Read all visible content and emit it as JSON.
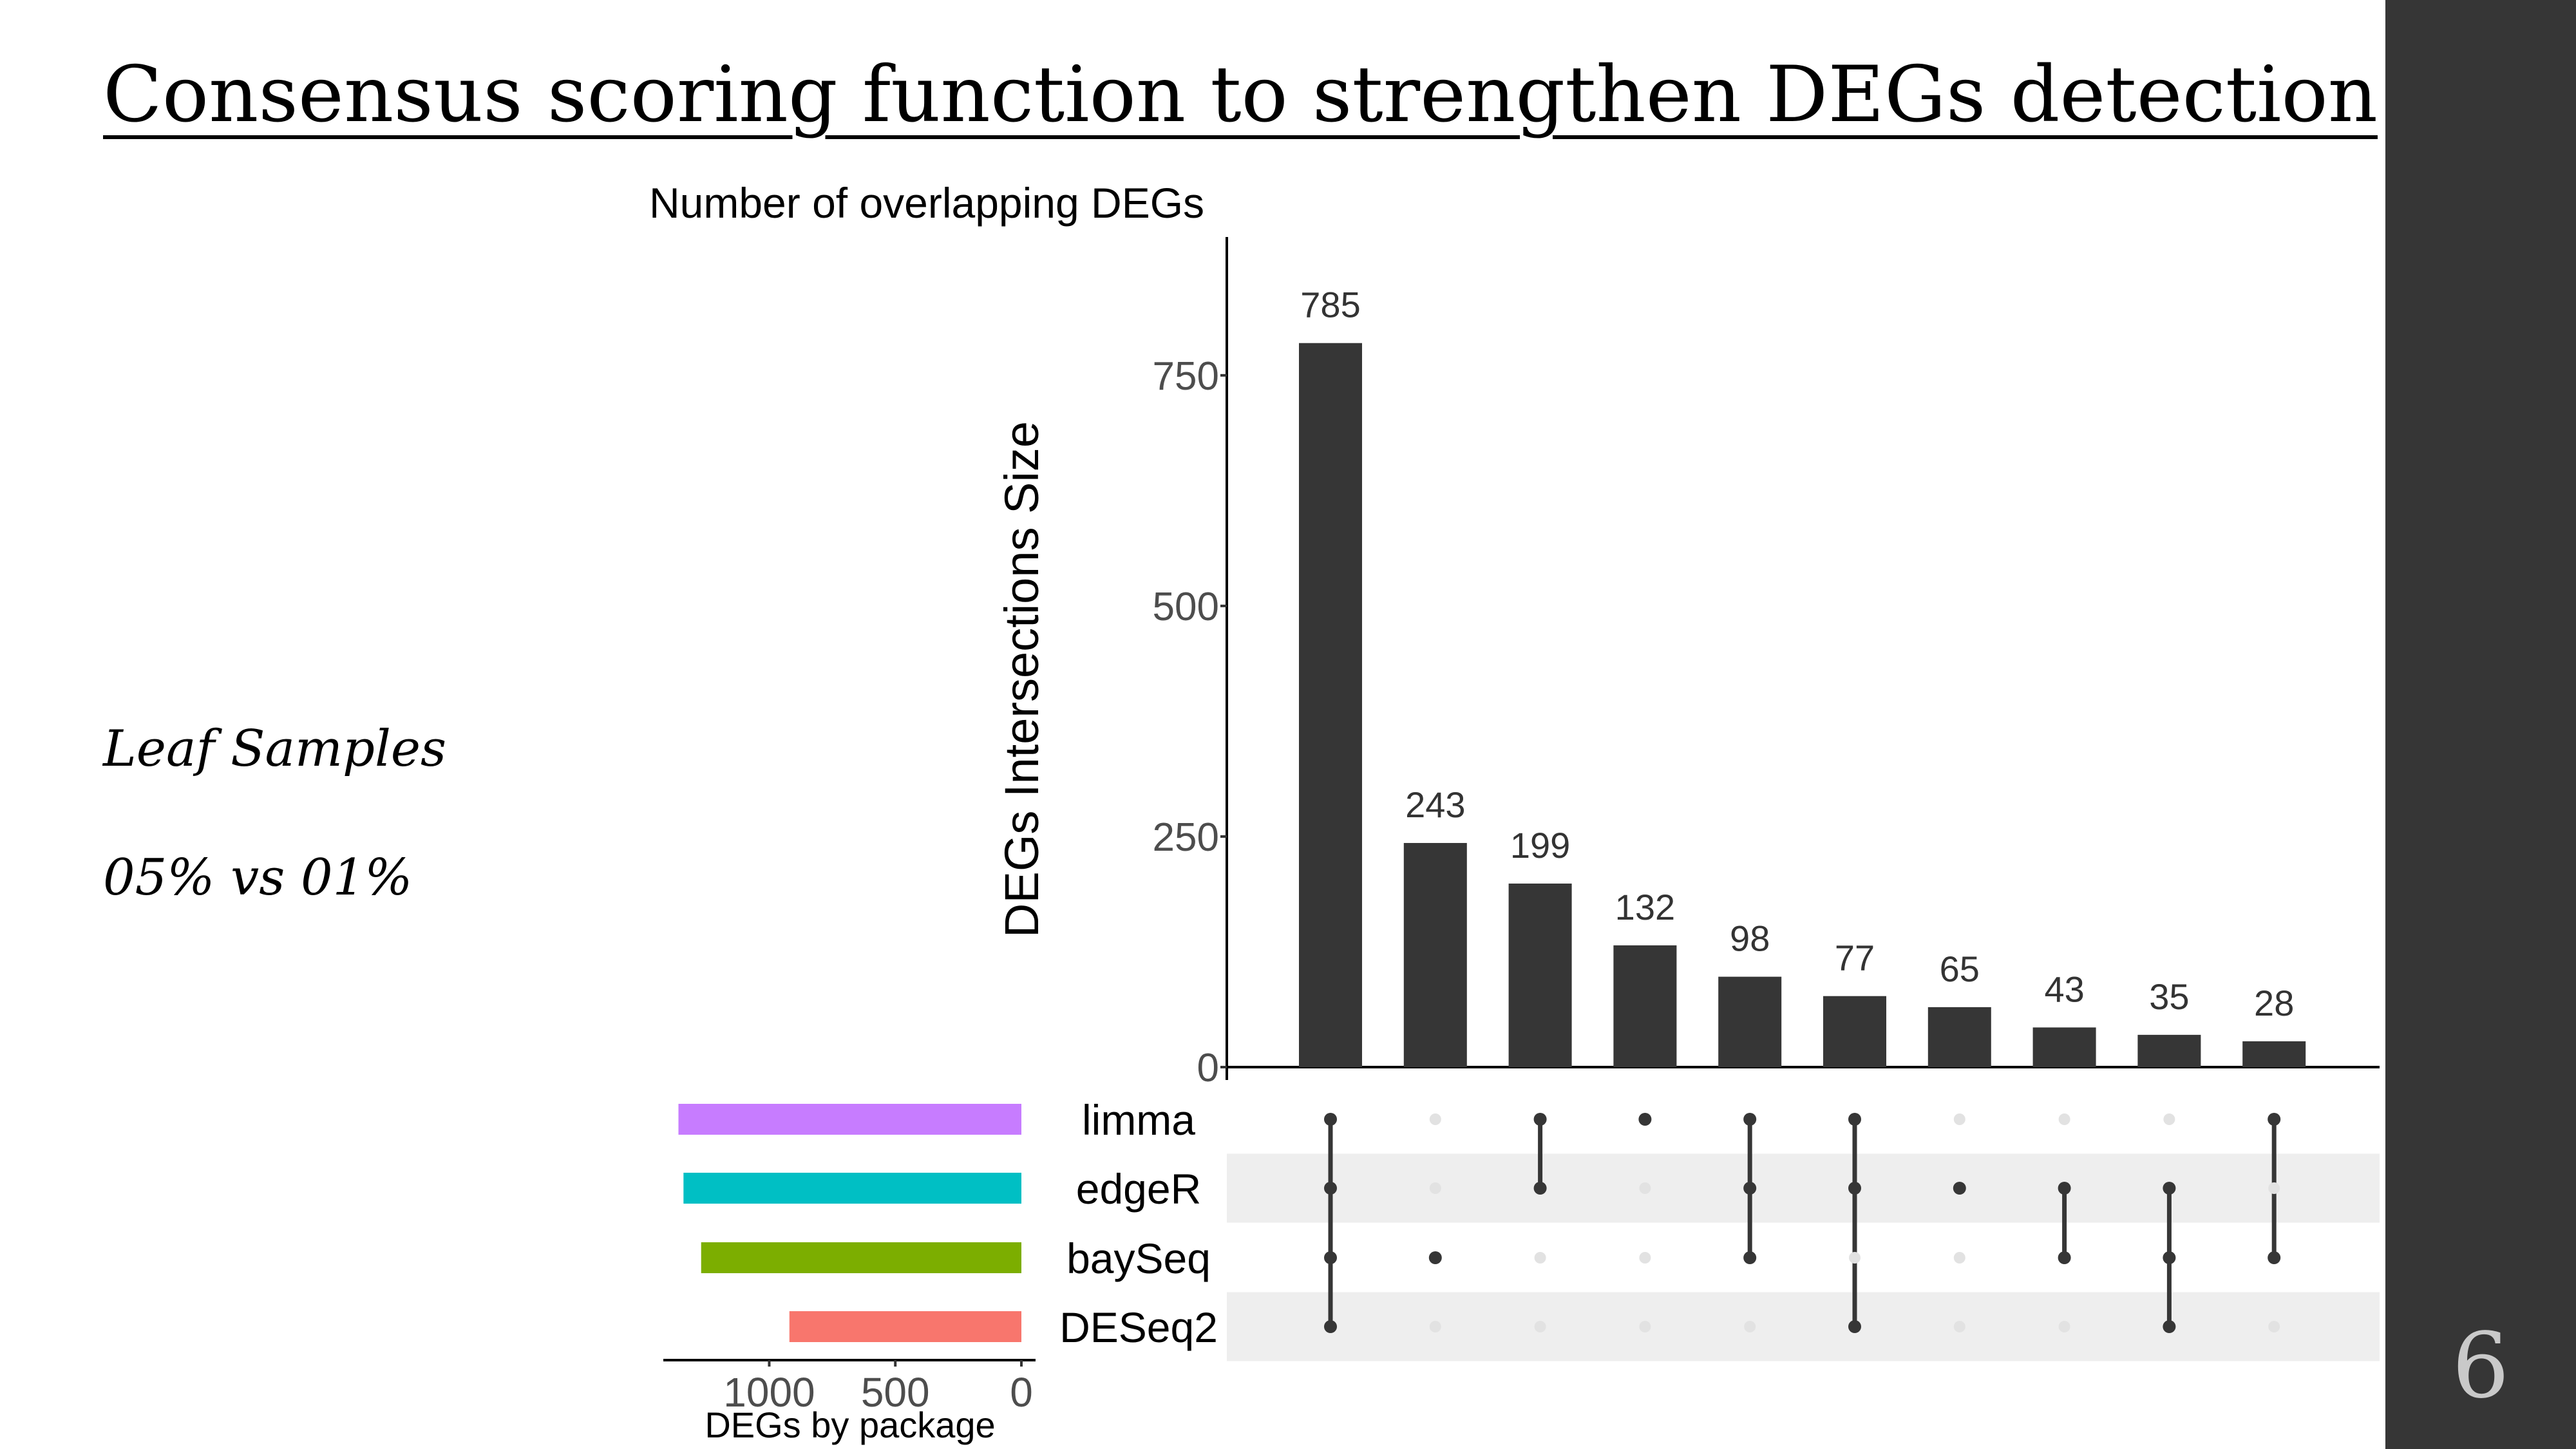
{
  "slide": {
    "title": "Consensus scoring function to strengthen DEGs detection",
    "side_line1": "Leaf Samples",
    "side_line2": "05% vs 01%",
    "page_number": "6",
    "colors": {
      "sidebar": "#363636",
      "bars": "#363636",
      "stripe": "#eeeeee"
    }
  },
  "chart_data": {
    "type": "bar",
    "title": "Number of overlapping DEGs",
    "ylabel": "DEGs Intersections Size",
    "ylim": [
      0,
      900
    ],
    "yticks": [
      0,
      250,
      500,
      750
    ],
    "intersections": [
      {
        "value": 785,
        "label": "785",
        "members": [
          "limma",
          "edgeR",
          "baySeq",
          "DESeq2"
        ]
      },
      {
        "value": 243,
        "label": "243",
        "members": [
          "baySeq"
        ]
      },
      {
        "value": 199,
        "label": "199",
        "members": [
          "limma",
          "edgeR"
        ]
      },
      {
        "value": 132,
        "label": "132",
        "members": [
          "limma"
        ]
      },
      {
        "value": 98,
        "label": "98",
        "members": [
          "limma",
          "edgeR",
          "baySeq"
        ]
      },
      {
        "value": 77,
        "label": "77",
        "members": [
          "limma",
          "edgeR",
          "DESeq2"
        ]
      },
      {
        "value": 65,
        "label": "65",
        "members": [
          "edgeR"
        ]
      },
      {
        "value": 43,
        "label": "43",
        "members": [
          "edgeR",
          "baySeq"
        ]
      },
      {
        "value": 35,
        "label": "35",
        "members": [
          "edgeR",
          "baySeq",
          "DESeq2"
        ]
      },
      {
        "value": 28,
        "label": "28",
        "members": [
          "limma",
          "baySeq"
        ]
      }
    ],
    "sets": [
      {
        "name": "limma",
        "size": 1360,
        "color": "#c77cff"
      },
      {
        "name": "edgeR",
        "size": 1340,
        "color": "#00bfc4"
      },
      {
        "name": "baySeq",
        "size": 1270,
        "color": "#7cae00"
      },
      {
        "name": "DESeq2",
        "size": 920,
        "color": "#f8766d"
      }
    ],
    "set_size_axis": {
      "label": "DEGs by package",
      "ticks": [
        1000,
        500,
        0
      ],
      "tick_labels": [
        "1000",
        "500",
        "0"
      ],
      "max": 1420
    }
  }
}
